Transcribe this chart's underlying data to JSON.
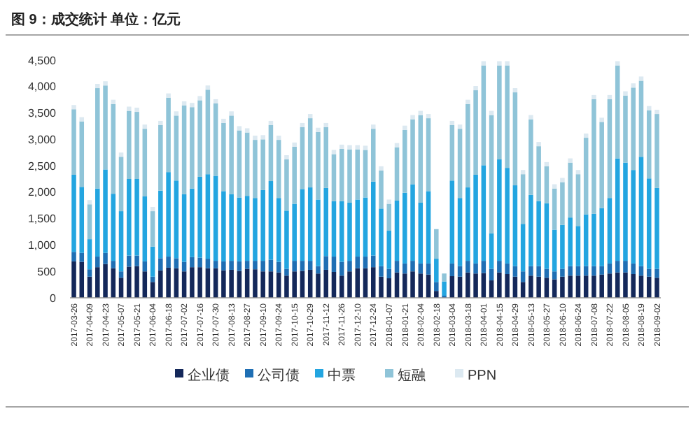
{
  "chart_data": {
    "type": "bar",
    "stacked": true,
    "title": "图 9：成交统计 单位：亿元",
    "categories": [
      "2017-03-26",
      null,
      "2017-04-09",
      null,
      "2017-04-23",
      null,
      "2017-05-07",
      null,
      "2017-05-21",
      null,
      "2017-06-04",
      null,
      "2017-06-18",
      null,
      "2017-07-02",
      null,
      "2017-07-16",
      null,
      "2017-07-30",
      null,
      "2017-08-13",
      null,
      "2017-08-27",
      null,
      "2017-09-10",
      null,
      "2017-09-24",
      null,
      "2017-10-15",
      null,
      "2017-10-29",
      null,
      "2017-11-12",
      null,
      "2017-11-26",
      null,
      "2017-12-10",
      null,
      "2017-12-24",
      null,
      "2018-01-07",
      null,
      "2018-01-21",
      null,
      "2018-02-04",
      null,
      "2018-02-18",
      null,
      "2018-03-04",
      null,
      "2018-03-18",
      null,
      "2018-04-01",
      null,
      "2018-04-15",
      null,
      "2018-04-29",
      null,
      "2018-05-13",
      null,
      "2018-05-27",
      null,
      "2018-06-10",
      null,
      "2018-06-24",
      null,
      "2018-07-08",
      null,
      "2018-07-22",
      null,
      "2018-08-05",
      null,
      "2018-08-19",
      null,
      "2018-09-02"
    ],
    "series": [
      {
        "name": "企业债",
        "color": "#14285a",
        "values": [
          690,
          680,
          400,
          580,
          640,
          560,
          380,
          590,
          600,
          500,
          300,
          520,
          570,
          560,
          500,
          580,
          580,
          560,
          560,
          520,
          530,
          510,
          550,
          540,
          500,
          500,
          480,
          420,
          500,
          510,
          530,
          460,
          530,
          490,
          420,
          500,
          560,
          560,
          580,
          400,
          370,
          480,
          460,
          500,
          460,
          440,
          130,
          null,
          410,
          400,
          480,
          460,
          470,
          330,
          480,
          450,
          400,
          300,
          420,
          400,
          380,
          350,
          400,
          420,
          420,
          420,
          420,
          440,
          460,
          480,
          480,
          450,
          420,
          400,
          380
        ]
      },
      {
        "name": "公司债",
        "color": "#1f6fb4",
        "values": [
          180,
          170,
          140,
          200,
          210,
          140,
          120,
          210,
          200,
          190,
          100,
          230,
          210,
          190,
          180,
          190,
          180,
          180,
          140,
          170,
          170,
          180,
          150,
          160,
          200,
          220,
          200,
          130,
          200,
          190,
          170,
          140,
          260,
          290,
          260,
          200,
          220,
          220,
          220,
          200,
          180,
          220,
          190,
          200,
          190,
          210,
          170,
          40,
          240,
          200,
          220,
          190,
          230,
          220,
          220,
          200,
          200,
          200,
          180,
          200,
          170,
          150,
          150,
          180,
          180,
          180,
          180,
          160,
          190,
          220,
          220,
          200,
          180,
          150,
          170
        ]
      },
      {
        "name": "中票",
        "color": "#23a5e0",
        "values": [
          1460,
          1250,
          570,
          1290,
          1580,
          1270,
          1140,
          1450,
          1450,
          1230,
          570,
          1280,
          1600,
          1470,
          1280,
          1300,
          1530,
          1600,
          1610,
          1330,
          1260,
          1210,
          1230,
          1190,
          1340,
          1490,
          1210,
          1100,
          1080,
          1360,
          1390,
          1260,
          1290,
          1050,
          1150,
          1100,
          1080,
          1120,
          1400,
          1090,
          720,
          1140,
          1340,
          1450,
          1150,
          1370,
          440,
          270,
          1570,
          1290,
          1390,
          1680,
          1810,
          670,
          1920,
          1810,
          1530,
          900,
          1350,
          1230,
          1240,
          790,
          830,
          920,
          760,
          980,
          990,
          1100,
          1240,
          1940,
          1860,
          1770,
          2070,
          1710,
          1530
        ]
      },
      {
        "name": "短融",
        "color": "#8fc4d8",
        "values": [
          1240,
          1240,
          660,
          1900,
          1590,
          1700,
          1030,
          1290,
          1270,
          1280,
          670,
          1240,
          1410,
          1230,
          1680,
          1540,
          1450,
          1600,
          1370,
          1290,
          1490,
          1270,
          1200,
          1100,
          960,
          1060,
          1100,
          970,
          1080,
          1170,
          1310,
          1280,
          1150,
          890,
          990,
          1010,
          950,
          900,
          1000,
          720,
          510,
          1010,
          1190,
          1230,
          1660,
          1380,
          560,
          150,
          1050,
          1310,
          1580,
          1600,
          1890,
          2240,
          1780,
          1940,
          1760,
          940,
          1430,
          1040,
          700,
          780,
          810,
          1040,
          980,
          1450,
          2170,
          1630,
          1870,
          1760,
          1270,
          1560,
          1440,
          1290,
          1400
        ]
      },
      {
        "name": "PPN",
        "color": "#dce9f1",
        "values": [
          80,
          80,
          80,
          80,
          80,
          80,
          80,
          80,
          80,
          80,
          80,
          80,
          80,
          80,
          80,
          80,
          80,
          80,
          80,
          80,
          80,
          80,
          80,
          80,
          80,
          80,
          80,
          80,
          80,
          80,
          80,
          80,
          80,
          80,
          80,
          80,
          80,
          80,
          80,
          80,
          80,
          80,
          80,
          80,
          80,
          80,
          null,
          null,
          80,
          80,
          80,
          80,
          80,
          80,
          80,
          80,
          80,
          80,
          80,
          80,
          80,
          80,
          80,
          80,
          80,
          80,
          80,
          80,
          80,
          80,
          80,
          80,
          80,
          80,
          80
        ]
      }
    ],
    "ylim": [
      0,
      4500
    ],
    "yticks": [
      0,
      {
        "value": 500,
        "label": "500"
      },
      {
        "value": 1000,
        "label": "1,000"
      },
      {
        "value": 1500,
        "label": "1,500"
      },
      {
        "value": 2000,
        "label": "2,000"
      },
      {
        "value": 2500,
        "label": "2,500"
      },
      {
        "value": 3000,
        "label": "3,000"
      },
      {
        "value": 3500,
        "label": "3,500"
      },
      {
        "value": 4000,
        "label": "4,000"
      },
      {
        "value": 4500,
        "label": "4,500"
      }
    ],
    "grid": false,
    "legend": "bottom"
  }
}
